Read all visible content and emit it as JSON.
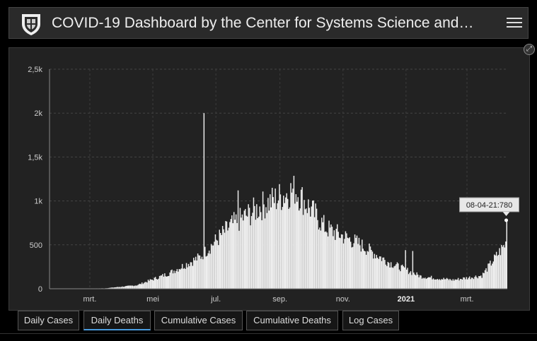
{
  "header": {
    "title": "COVID-19 Dashboard by the Center for Systems Science and…",
    "logo_icon": "university-shield-icon",
    "menu_icon": "hamburger-menu-icon"
  },
  "panel": {
    "expand_icon": "expand-icon"
  },
  "tabs": [
    {
      "label": "Daily Cases",
      "active": false
    },
    {
      "label": "Daily Deaths",
      "active": true
    },
    {
      "label": "Cumulative Cases",
      "active": false
    },
    {
      "label": "Cumulative Deaths",
      "active": false
    },
    {
      "label": "Log Cases",
      "active": false
    }
  ],
  "colors": {
    "accent": "#4a9ce0",
    "bars": "#eeeeee",
    "background": "#222222"
  },
  "chart_data": {
    "type": "bar",
    "x_start": "2020-01-22",
    "x_end": "2021-04-08",
    "ylim": [
      0,
      2500
    ],
    "y_ticks": [
      "0",
      "500",
      "1k",
      "1,5k",
      "2k",
      "2,5k"
    ],
    "y_tick_values": [
      0,
      500,
      1000,
      1500,
      2000,
      2500
    ],
    "x_tick_labels": [
      "mrt.",
      "mei",
      "jul.",
      "sep.",
      "nov.",
      "2021",
      "mrt."
    ],
    "x_tick_dates": [
      "2020-03-01",
      "2020-05-01",
      "2020-07-01",
      "2020-09-01",
      "2020-11-01",
      "2021-01-01",
      "2021-03-01"
    ],
    "grid": true,
    "monthly_daily_deaths_approx": [
      [
        "2020-01",
        0
      ],
      [
        "2020-02",
        0
      ],
      [
        "2020-03",
        5
      ],
      [
        "2020-04",
        40
      ],
      [
        "2020-05",
        170
      ],
      [
        "2020-06",
        360
      ],
      [
        "2020-07",
        720
      ],
      [
        "2020-08",
        950
      ],
      [
        "2020-09",
        1130
      ],
      [
        "2020-10",
        690
      ],
      [
        "2020-11",
        520
      ],
      [
        "2020-12",
        300
      ],
      [
        "2021-01",
        140
      ],
      [
        "2021-02",
        100
      ],
      [
        "2021-03",
        150
      ],
      [
        "2021-04",
        640
      ]
    ],
    "spikes": [
      [
        "2020-06-19",
        2000
      ],
      [
        "2020-07-22",
        1120
      ],
      [
        "2020-12-31",
        440
      ],
      [
        "2021-01-07",
        430
      ],
      [
        "2021-04-08",
        780
      ]
    ],
    "tooltip": "08-04-21:780"
  }
}
